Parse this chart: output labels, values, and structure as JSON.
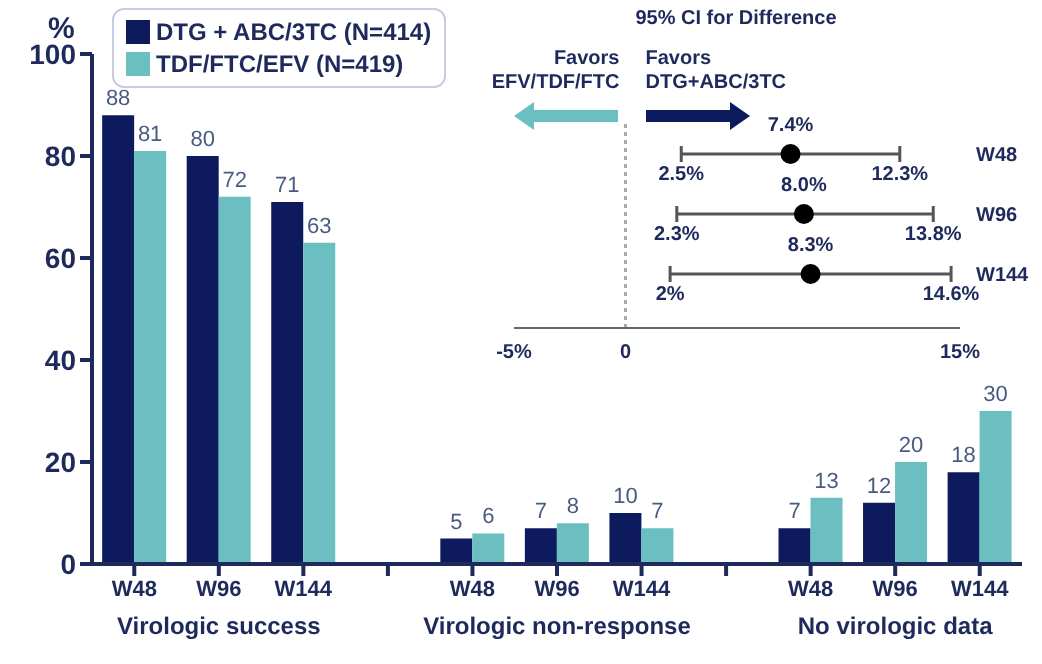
{
  "chart_data": [
    {
      "type": "bar",
      "ylabel": "%",
      "categories": [
        "W48",
        "W96",
        "W144",
        null,
        "W48",
        "W96",
        "W144",
        null,
        "W48",
        "W96",
        "W144"
      ],
      "series": [
        {
          "name": "DTG + ABC/3TC (N=414)",
          "color": "#0d1b5e",
          "values": [
            88,
            80,
            71,
            null,
            5,
            7,
            10,
            null,
            7,
            12,
            18
          ]
        },
        {
          "name": "TDF/FTC/EFV (N=419)",
          "color": "#6cbfc1",
          "values": [
            81,
            72,
            63,
            null,
            6,
            8,
            7,
            null,
            13,
            20,
            30
          ]
        }
      ],
      "ylim": [
        0,
        100
      ],
      "yticks": [
        0,
        20,
        40,
        60,
        80,
        100
      ],
      "data_labels": true,
      "legend": "top left",
      "annotations": [
        "Virologic success",
        "Virologic non-response",
        "No virologic data"
      ]
    },
    {
      "type": "scatter",
      "orientation": "horizontal",
      "title": "95% CI for Difference",
      "categories": [
        "W48",
        "W96",
        "W144"
      ],
      "series": [
        {
          "color": "#000000",
          "values": [
            7.4,
            8.0,
            8.3
          ],
          "errors": [
            [
              2.5,
              12.3
            ],
            [
              2.3,
              13.8
            ],
            [
              2,
              14.6
            ]
          ],
          "value_labels": [
            "7.4%",
            "8.0%",
            "8.3%"
          ]
        }
      ],
      "xlim": [
        -5,
        15
      ],
      "xticks": [
        {
          "value": -5,
          "label": "-5%"
        },
        0,
        {
          "value": 15,
          "label": "15%"
        }
      ],
      "marker": "circle",
      "ref_lines": [
        {
          "axis": "x",
          "value": 0,
          "color": "#aaaaaa",
          "line_style": "dotted"
        }
      ],
      "annotations": [
        "Favors\nEFV/TDF/FTC",
        "Favors\nDTG+ABC/3TC",
        {
          "text": "2.5%",
          "x": 2.5,
          "y": "W48"
        },
        {
          "text": "12.3%",
          "x": 12.3,
          "y": "W48"
        },
        {
          "text": "2.3%",
          "x": 2.3,
          "y": "W96"
        },
        {
          "text": "13.8%",
          "x": 13.8,
          "y": "W96"
        },
        {
          "text": "2%",
          "x": 2,
          "y": "W144"
        },
        {
          "text": "14.6%",
          "x": 14.6,
          "y": "W144"
        }
      ]
    }
  ]
}
